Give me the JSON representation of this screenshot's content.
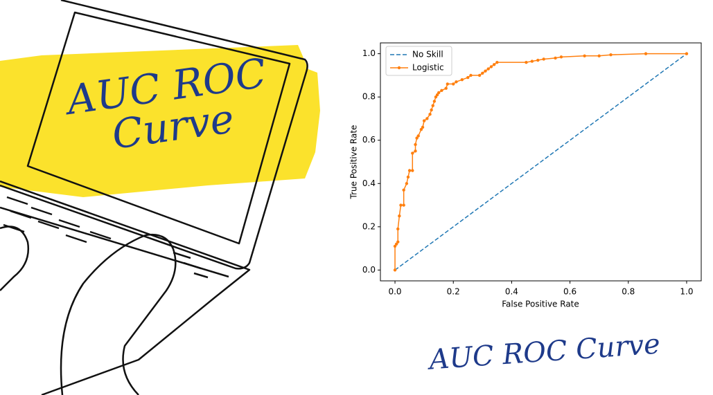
{
  "screen_title": [
    "AUC ROC",
    "Curve"
  ],
  "caption": "AUC ROC Curve",
  "chart_data": {
    "type": "line",
    "xlabel": "False Positive Rate",
    "ylabel": "True Positive Rate",
    "xlim": [
      -0.05,
      1.05
    ],
    "ylim": [
      -0.05,
      1.05
    ],
    "xticks": [
      {
        "value": 0,
        "label": "0.0"
      },
      {
        "value": 0.2,
        "label": "0.2"
      },
      {
        "value": 0.4,
        "label": "0.4"
      },
      {
        "value": 0.6,
        "label": "0.6"
      },
      {
        "value": 0.8,
        "label": "0.8"
      },
      {
        "value": 1,
        "label": "1.0"
      }
    ],
    "yticks": [
      {
        "value": 0,
        "label": "0.0"
      },
      {
        "value": 0.2,
        "label": "0.2"
      },
      {
        "value": 0.4,
        "label": "0.4"
      },
      {
        "value": 0.6,
        "label": "0.6"
      },
      {
        "value": 0.8,
        "label": "0.8"
      },
      {
        "value": 1,
        "label": "1.0"
      }
    ],
    "grid": false,
    "legend": "upper-left",
    "series": [
      {
        "name": "No Skill",
        "color": "#1f77b4",
        "dash": true,
        "marker": false,
        "x": [
          0,
          1
        ],
        "values": [
          0,
          1
        ]
      },
      {
        "name": "Logistic",
        "color": "#ff7f0e",
        "dash": false,
        "marker": true,
        "x": [
          0,
          0,
          0.005,
          0.01,
          0.01,
          0.015,
          0.02,
          0.03,
          0.03,
          0.04,
          0.045,
          0.05,
          0.06,
          0.06,
          0.07,
          0.07,
          0.075,
          0.08,
          0.09,
          0.095,
          0.1,
          0.11,
          0.12,
          0.125,
          0.13,
          0.135,
          0.14,
          0.145,
          0.15,
          0.16,
          0.175,
          0.18,
          0.2,
          0.21,
          0.23,
          0.25,
          0.26,
          0.29,
          0.3,
          0.31,
          0.32,
          0.33,
          0.34,
          0.35,
          0.45,
          0.47,
          0.49,
          0.51,
          0.55,
          0.57,
          0.65,
          0.7,
          0.74,
          0.86,
          1
        ],
        "values": [
          0,
          0.11,
          0.12,
          0.13,
          0.19,
          0.25,
          0.3,
          0.3,
          0.37,
          0.4,
          0.43,
          0.46,
          0.46,
          0.54,
          0.55,
          0.58,
          0.61,
          0.62,
          0.65,
          0.66,
          0.69,
          0.7,
          0.72,
          0.74,
          0.76,
          0.78,
          0.8,
          0.81,
          0.82,
          0.83,
          0.84,
          0.86,
          0.86,
          0.87,
          0.88,
          0.89,
          0.9,
          0.9,
          0.91,
          0.92,
          0.93,
          0.94,
          0.95,
          0.96,
          0.96,
          0.965,
          0.97,
          0.975,
          0.98,
          0.985,
          0.99,
          0.99,
          0.995,
          1,
          1
        ]
      }
    ]
  }
}
